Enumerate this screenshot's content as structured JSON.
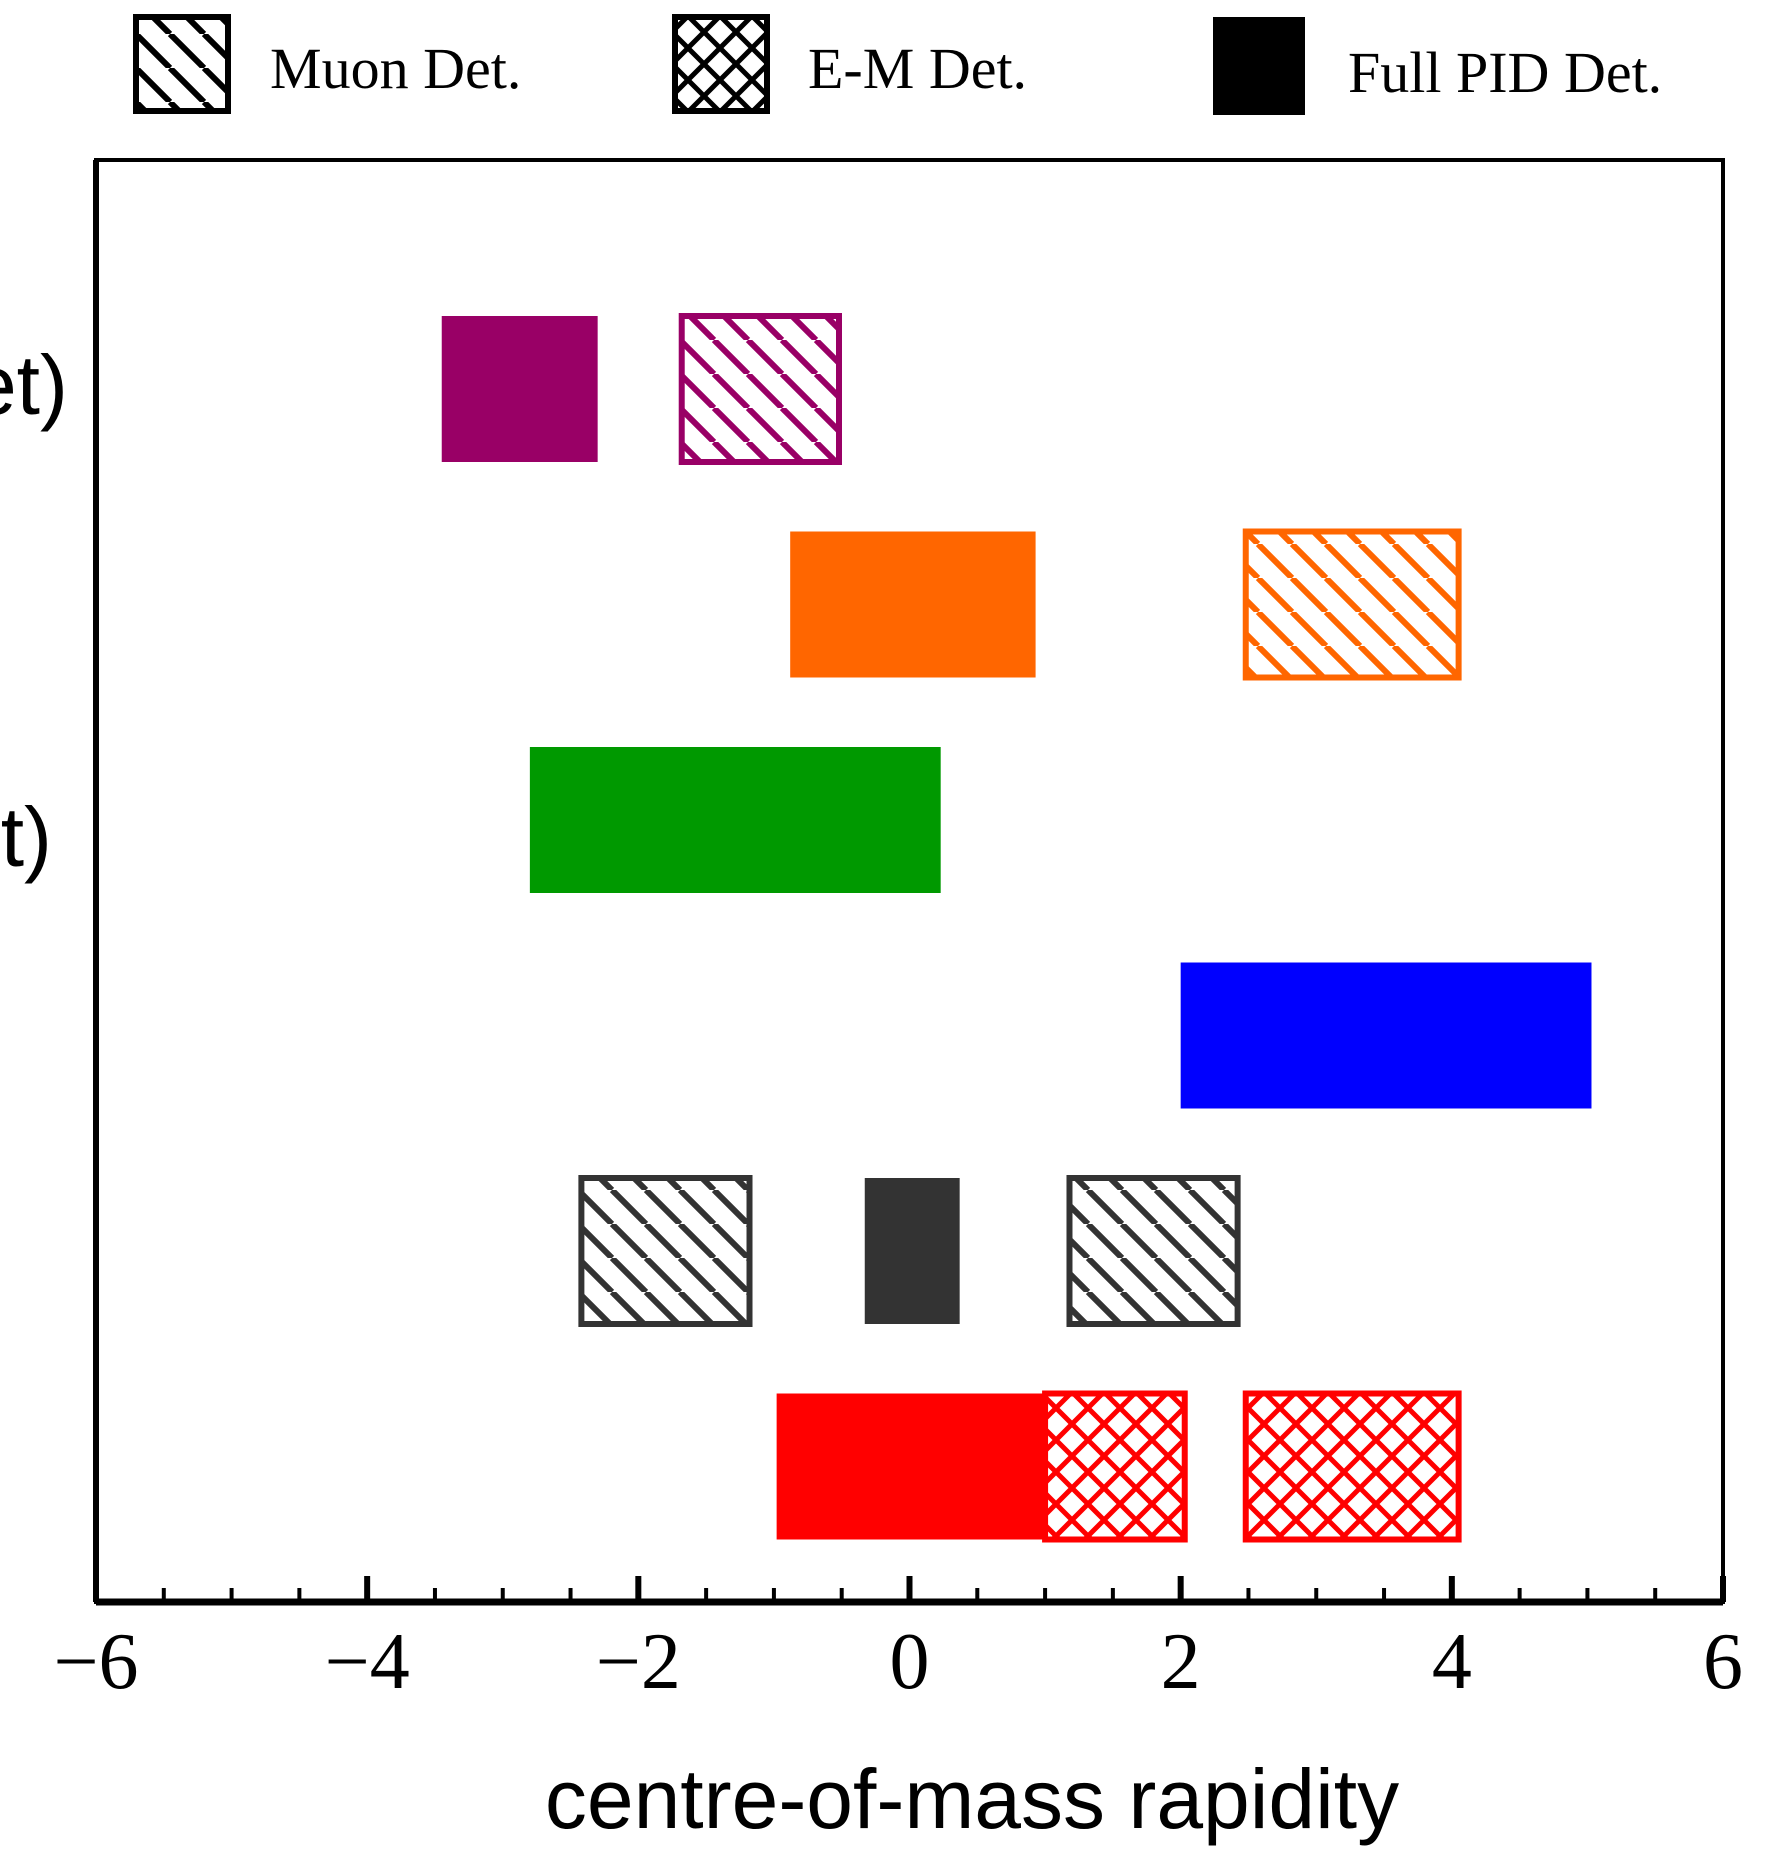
{
  "chart_data": {
    "type": "bar",
    "orientation": "horizontal-range",
    "xlabel": "centre-of-mass rapidity",
    "xlim": [
      -6,
      6
    ],
    "xticks": [
      -6,
      -4,
      -2,
      0,
      2,
      4,
      6
    ],
    "xtick_labels": [
      "−6",
      "−4",
      "−2",
      "0",
      "2",
      "4",
      "6"
    ],
    "x_minor_step": 0.5,
    "grid": false,
    "legend": {
      "placement": "top",
      "entries": [
        {
          "label": "Muon Det.",
          "pattern": "diagonal"
        },
        {
          "label": "E-M Det.",
          "pattern": "crosshatch"
        },
        {
          "label": "Full PID Det.",
          "pattern": "solid"
        }
      ]
    },
    "row_labels": [
      "et)",
      "t)"
    ],
    "rows": [
      {
        "label": "et)",
        "color": "#990066",
        "ranges": [
          {
            "x0": -3.45,
            "x1": -2.3,
            "pattern": "solid"
          },
          {
            "x0": -1.68,
            "x1": -0.52,
            "pattern": "diagonal"
          }
        ]
      },
      {
        "label": "",
        "color": "#ff6600",
        "ranges": [
          {
            "x0": -0.88,
            "x1": 0.93,
            "pattern": "solid"
          },
          {
            "x0": 2.48,
            "x1": 4.05,
            "pattern": "diagonal"
          }
        ]
      },
      {
        "label": "t)",
        "color": "#009900",
        "ranges": [
          {
            "x0": -2.8,
            "x1": 0.23,
            "pattern": "solid"
          }
        ]
      },
      {
        "label": "",
        "color": "#0000ff",
        "ranges": [
          {
            "x0": 2.0,
            "x1": 5.03,
            "pattern": "solid"
          }
        ]
      },
      {
        "label": "",
        "color": "#333333",
        "ranges": [
          {
            "x0": -2.42,
            "x1": -1.18,
            "pattern": "diagonal"
          },
          {
            "x0": -0.33,
            "x1": 0.37,
            "pattern": "solid"
          },
          {
            "x0": 1.18,
            "x1": 2.42,
            "pattern": "diagonal"
          }
        ]
      },
      {
        "label": "",
        "color": "#ff0000",
        "ranges": [
          {
            "x0": -0.98,
            "x1": 1.0,
            "pattern": "solid"
          },
          {
            "x0": 1.0,
            "x1": 2.03,
            "pattern": "crosshatch"
          },
          {
            "x0": 2.48,
            "x1": 4.05,
            "pattern": "crosshatch"
          }
        ]
      }
    ]
  }
}
